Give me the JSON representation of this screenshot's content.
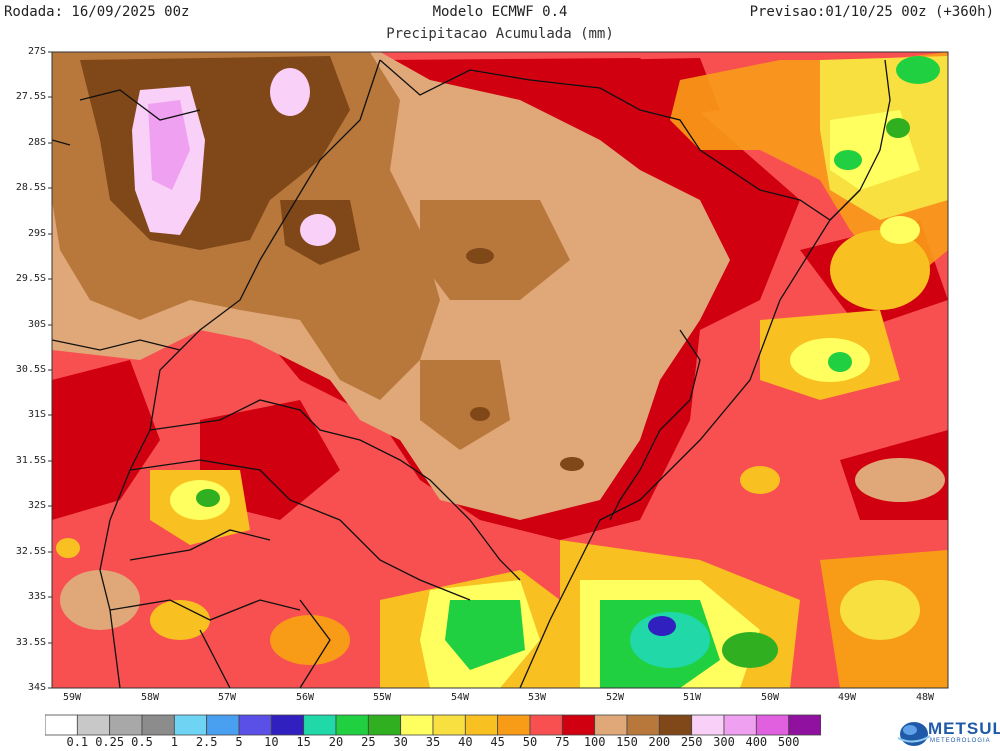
{
  "header": {
    "run": "Rodada: 16/09/2025 00z",
    "model": "Modelo ECMWF 0.4",
    "valid": "Previsao:01/10/25 00z (+360h)",
    "subtitle": "Precipitacao Acumulada (mm)"
  },
  "axes": {
    "lat_labels": [
      "27S",
      "27.5S",
      "28S",
      "28.5S",
      "29S",
      "29.5S",
      "30S",
      "30.5S",
      "31S",
      "31.5S",
      "32S",
      "32.5S",
      "33S",
      "33.5S",
      "34S"
    ],
    "lon_labels": [
      "59W",
      "58W",
      "57W",
      "56W",
      "55W",
      "54W",
      "53W",
      "52W",
      "51W",
      "50W",
      "49W",
      "48W"
    ]
  },
  "legend": {
    "values": [
      "0.1",
      "0.25",
      "0.5",
      "1",
      "2.5",
      "5",
      "10",
      "15",
      "20",
      "25",
      "30",
      "35",
      "40",
      "45",
      "50",
      "75",
      "100",
      "150",
      "200",
      "250",
      "300",
      "400",
      "500"
    ],
    "colors": [
      "#ffffff",
      "#c8c8c8",
      "#a8a8a8",
      "#8c8c8c",
      "#6fd4f4",
      "#4aa0f0",
      "#5a50e8",
      "#3020c0",
      "#20d8a8",
      "#20d040",
      "#30b020",
      "#ffff60",
      "#f8e040",
      "#f8c020",
      "#f89c18",
      "#f85050",
      "#d00010",
      "#e0a878",
      "#b8783c",
      "#804818",
      "#f8d0f8",
      "#f0a0f0",
      "#e060e0",
      "#9010a0"
    ]
  },
  "logo": {
    "name": "METSUL",
    "sub": "METEOROLOGIA"
  }
}
